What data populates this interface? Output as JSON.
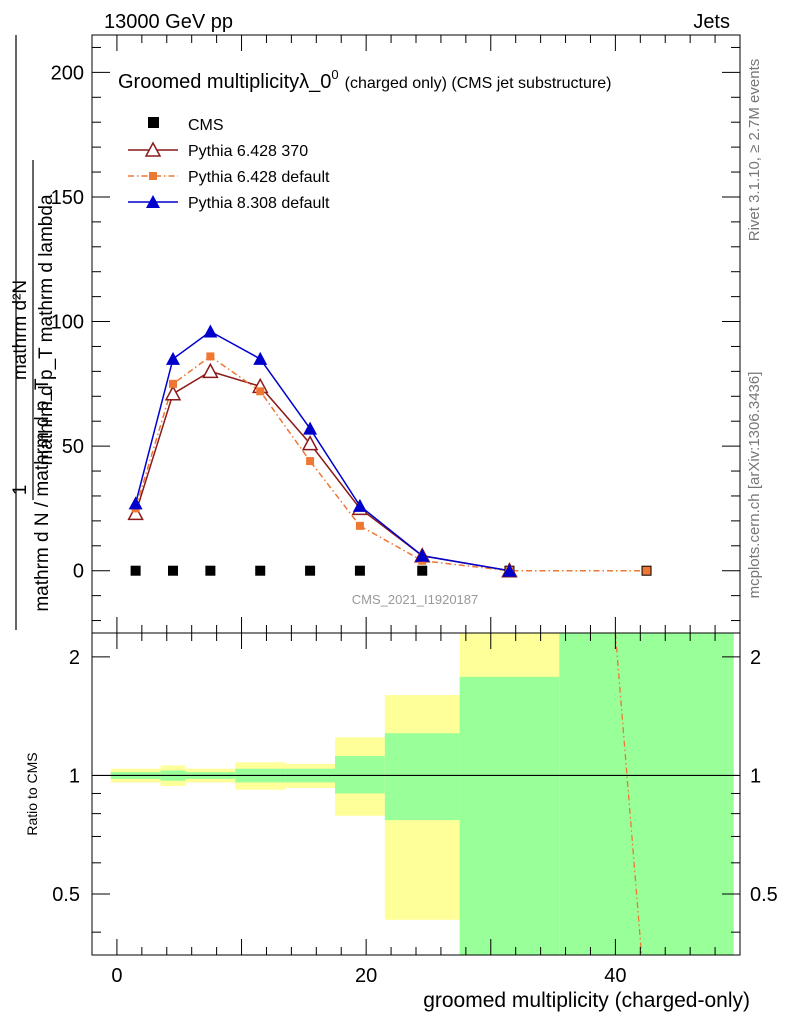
{
  "header": {
    "left": "13000 GeV pp",
    "right": "Jets"
  },
  "side_labels": {
    "rivet": "Rivet 3.1.10, ≥ 2.7M events",
    "mcplots": "mcplots.cern.ch [arXiv:1306.3436]"
  },
  "chart_data": [
    {
      "type": "line",
      "title_main": "Groomed multiplicityλ_0",
      "title_sup": "0",
      "title_suffix": "(charged only) (CMS jet substructure)",
      "analysis_id": "CMS_2021_I1920187",
      "ylabel_numer": "mathrm d²N",
      "ylabel_denom": "mathrm d p_T mathrm d lambda",
      "ylabel_prefix_numer": "1",
      "ylabel_prefix_denom": "mathrm d N / mathrm d p_T",
      "xlim": [
        -2,
        50
      ],
      "ylim": [
        -25,
        215
      ],
      "yticks": [
        0,
        50,
        100,
        150,
        200
      ],
      "legend_position": "top-left",
      "series": [
        {
          "name": "CMS",
          "color": "#000000",
          "marker": "square",
          "x": [
            1.5,
            4.5,
            7.5,
            11.5,
            15.5,
            19.5,
            24.5,
            31.5,
            42.5
          ],
          "y": [
            0,
            0,
            0,
            0,
            0,
            0,
            0,
            0,
            0
          ]
        },
        {
          "name": "Pythia 6.428 370",
          "color": "#8b1a1a",
          "marker": "open-triangle",
          "x": [
            1.5,
            4.5,
            7.5,
            11.5,
            15.5,
            19.5,
            24.5,
            31.5
          ],
          "y": [
            23,
            71,
            80,
            74,
            51,
            25,
            6,
            0
          ]
        },
        {
          "name": "Pythia 6.428 default",
          "color": "#ee7733",
          "marker": "small-square",
          "dash": "dash-dot",
          "x": [
            1.5,
            4.5,
            7.5,
            11.5,
            15.5,
            19.5,
            24.5,
            31.5,
            42.5
          ],
          "y": [
            25,
            75,
            86,
            72,
            44,
            18,
            4,
            0,
            0
          ]
        },
        {
          "name": "Pythia 8.308 default",
          "color": "#0000cc",
          "marker": "triangle",
          "x": [
            1.5,
            4.5,
            7.5,
            11.5,
            15.5,
            19.5,
            24.5,
            31.5
          ],
          "y": [
            27,
            85,
            96,
            85,
            57,
            26,
            6,
            0
          ]
        }
      ]
    },
    {
      "type": "area",
      "ylabel": "Ratio to CMS",
      "xlabel": "groomed multiplicity (charged-only)",
      "xlim": [
        -2,
        50
      ],
      "ylim": [
        0.35,
        2.3
      ],
      "yticks": [
        0.5,
        1,
        2
      ],
      "xticks": [
        0,
        20,
        40
      ],
      "bands": [
        {
          "x0": -0.5,
          "x1": 3.5,
          "yellow": [
            0.96,
            1.04
          ],
          "green": [
            0.98,
            1.02
          ]
        },
        {
          "x0": 3.5,
          "x1": 5.5,
          "yellow": [
            0.94,
            1.06
          ],
          "green": [
            0.97,
            1.03
          ]
        },
        {
          "x0": 5.5,
          "x1": 9.5,
          "yellow": [
            0.96,
            1.04
          ],
          "green": [
            0.98,
            1.02
          ]
        },
        {
          "x0": 9.5,
          "x1": 13.5,
          "yellow": [
            0.92,
            1.08
          ],
          "green": [
            0.96,
            1.04
          ]
        },
        {
          "x0": 13.5,
          "x1": 17.5,
          "yellow": [
            0.93,
            1.07
          ],
          "green": [
            0.96,
            1.04
          ]
        },
        {
          "x0": 17.5,
          "x1": 21.5,
          "yellow": [
            0.79,
            1.25
          ],
          "green": [
            0.9,
            1.12
          ]
        },
        {
          "x0": 21.5,
          "x1": 27.5,
          "yellow": [
            0.43,
            1.6
          ],
          "green": [
            0.77,
            1.28
          ]
        },
        {
          "x0": 27.5,
          "x1": 35.5,
          "yellow": [
            0.35,
            2.3
          ],
          "green": [
            0.35,
            1.78
          ]
        },
        {
          "x0": 35.5,
          "x1": 49.5,
          "yellow": [
            0.35,
            2.3
          ],
          "green": [
            0.35,
            2.3
          ]
        }
      ],
      "ratio_lines": [
        {
          "name": "Pythia 6.428 default",
          "color": "#ee7733",
          "points": [
            [
              40,
              2.3
            ],
            [
              42.1,
              0.35
            ]
          ]
        }
      ]
    }
  ]
}
